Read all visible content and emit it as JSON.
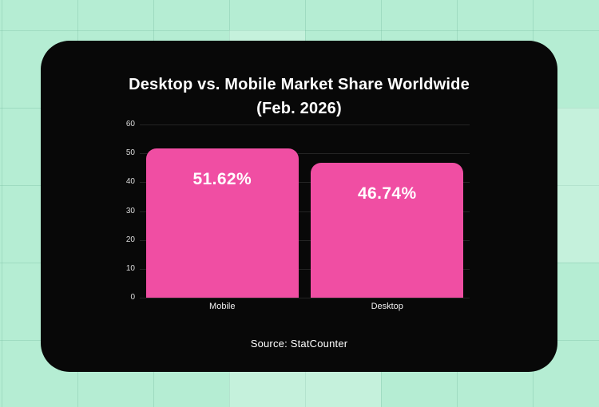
{
  "page": {
    "background_color": "#b5edd3",
    "grid_line_color": "rgba(110,180,152,0.30)"
  },
  "card": {
    "background_color": "#080808"
  },
  "chart_data": {
    "type": "bar",
    "title": "Desktop vs. Mobile Market Share Worldwide (Feb. 2026)",
    "title_line1": "Desktop vs. Mobile Market Share Worldwide",
    "title_line2": "(Feb. 2026)",
    "categories": [
      "Mobile",
      "Desktop"
    ],
    "values": [
      51.62,
      46.74
    ],
    "value_labels": [
      "51.62%",
      "46.74%"
    ],
    "yticks": [
      0,
      10,
      20,
      30,
      40,
      50,
      60
    ],
    "ylim": [
      0,
      60
    ],
    "xlabel": "",
    "ylabel": "",
    "grid": "horizontal",
    "legend": "none",
    "bar_color": "#f04ea3",
    "value_label_color": "#ffffff",
    "tick_label_color": "#dcdcdc"
  },
  "footer": {
    "source": "Source: StatCounter"
  }
}
